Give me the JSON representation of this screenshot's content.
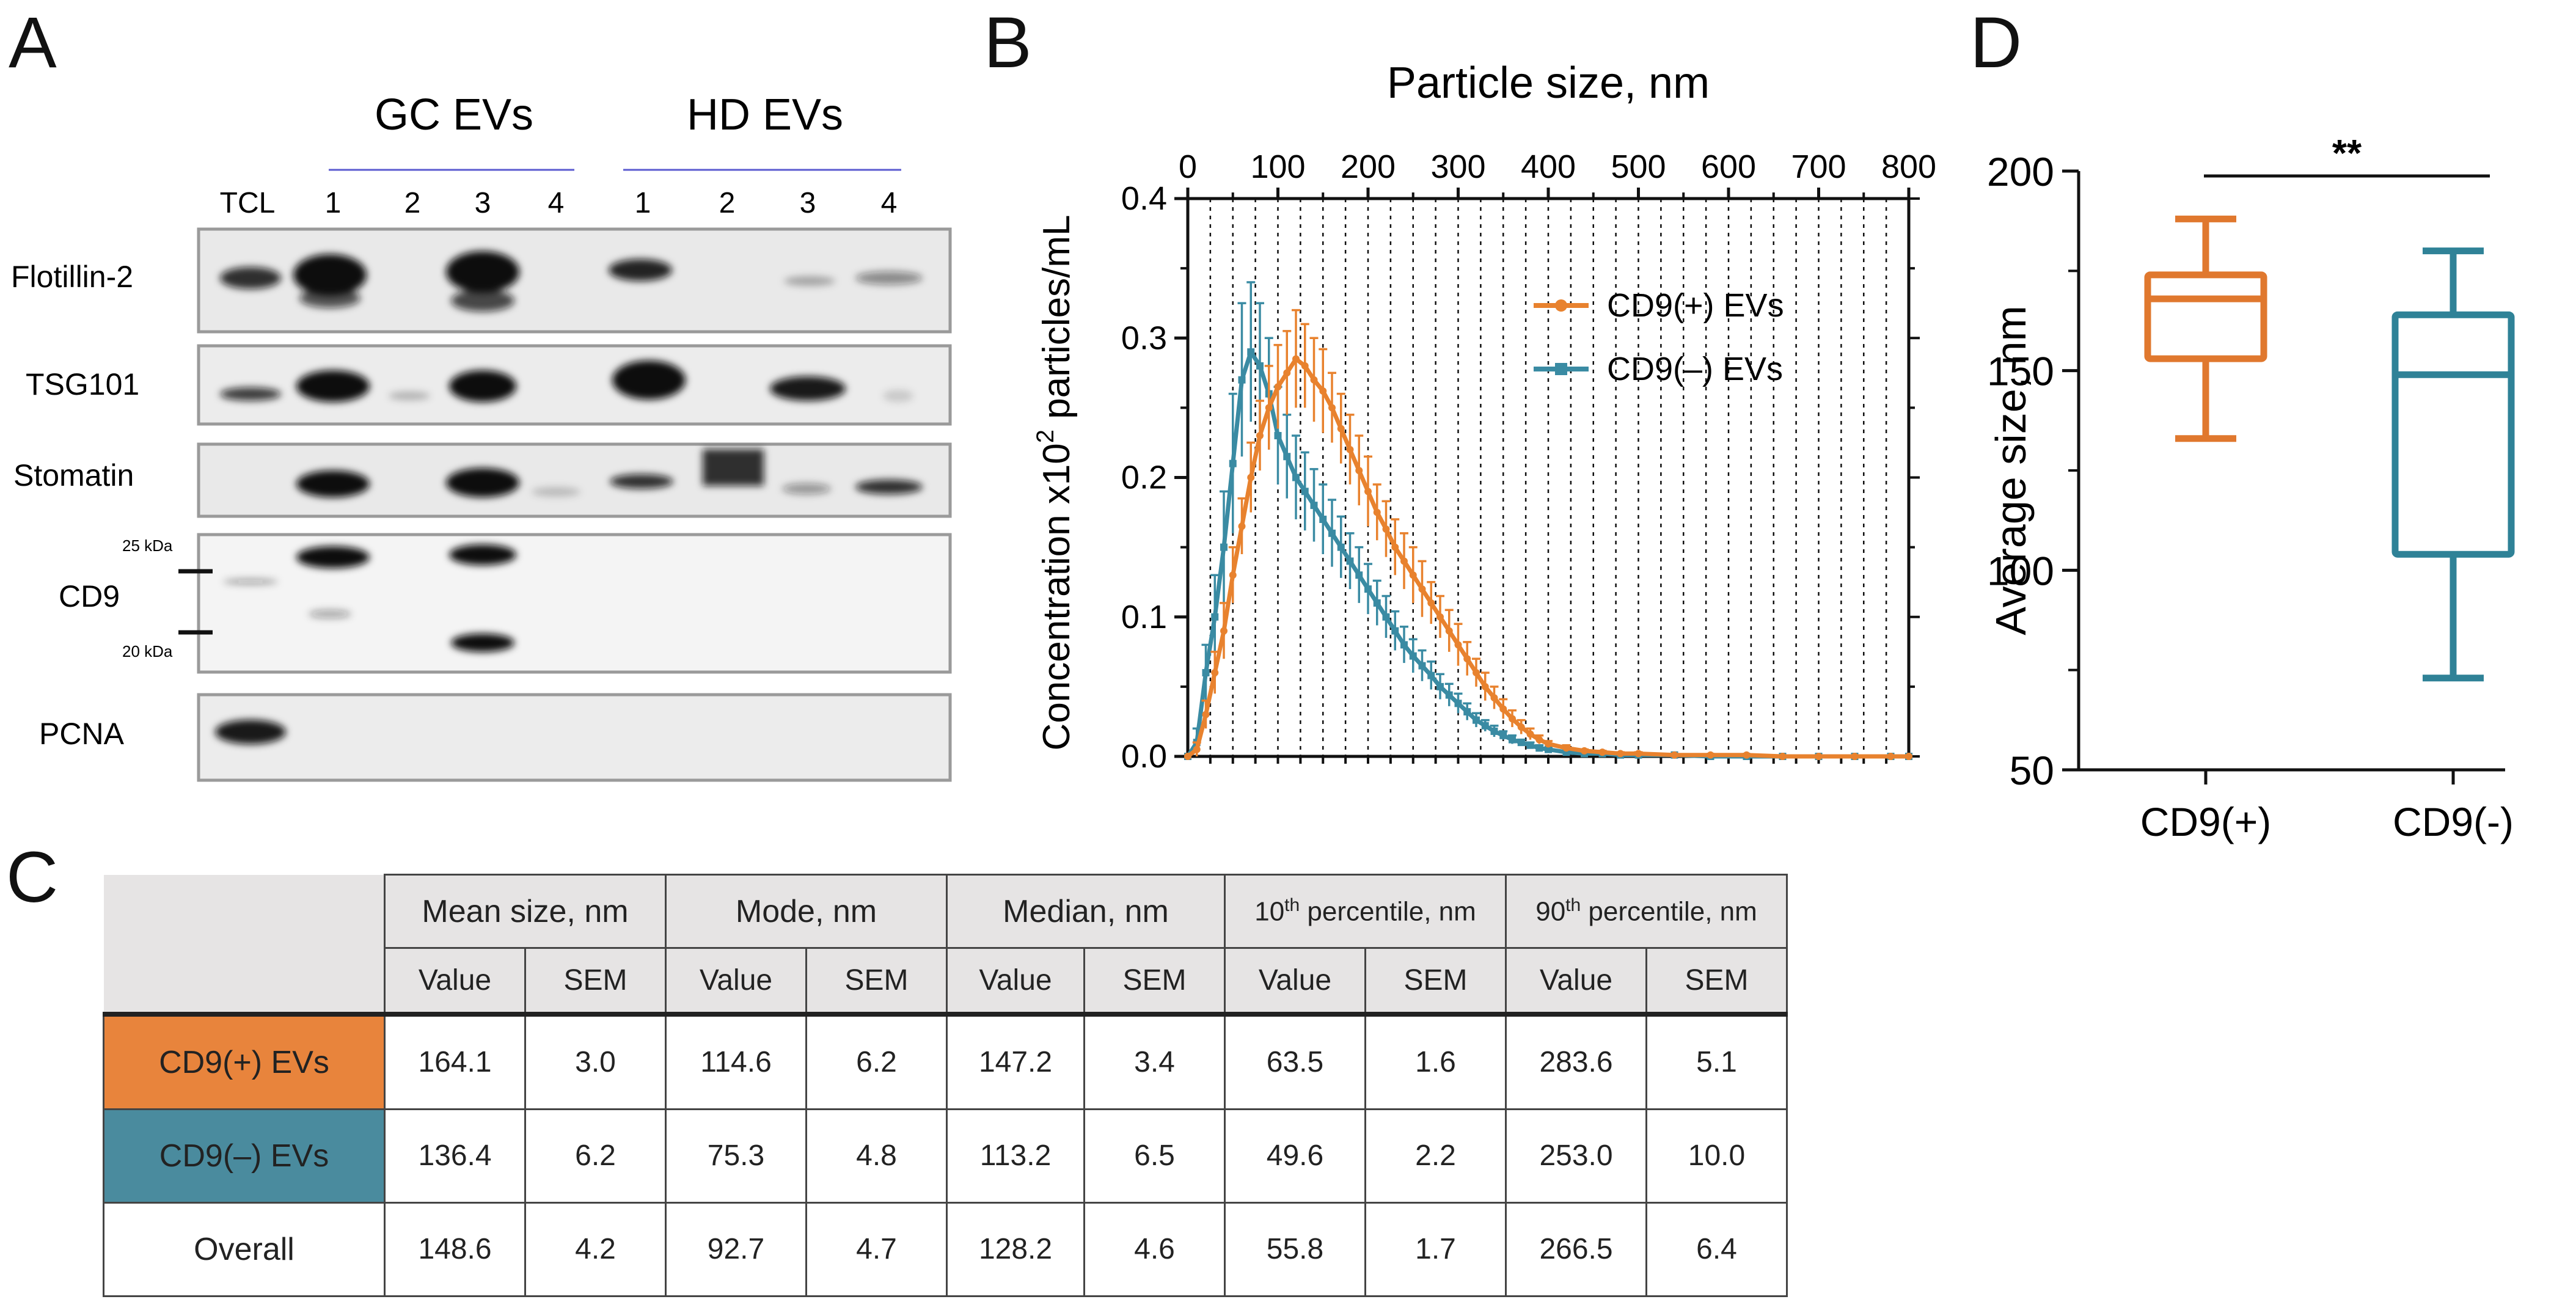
{
  "panels": {
    "a": "A",
    "b": "B",
    "c": "C",
    "d": "D"
  },
  "western_blot": {
    "groups": [
      "GC EVs",
      "HD EVs"
    ],
    "lanes": [
      "TCL",
      "1",
      "2",
      "3",
      "4",
      "1",
      "2",
      "3",
      "4"
    ],
    "proteins": [
      "Flotillin-2",
      "TSG101",
      "Stomatin",
      "CD9",
      "PCNA"
    ],
    "markers": [
      "25 kDa",
      "20 kDa"
    ]
  },
  "chart_data": [
    {
      "type": "line",
      "title": "Particle size, nm",
      "xlabel": "Particle size, nm",
      "ylabel": "Concentration x10² particles/mL",
      "ylabel_main": "Concentration x10",
      "ylabel_sup": "2",
      "ylabel_tail": " particles/mL",
      "xlim": [
        0,
        800
      ],
      "ylim": [
        0,
        0.4
      ],
      "xticks": [
        "0",
        "100",
        "200",
        "300",
        "400",
        "500",
        "600",
        "700",
        "800"
      ],
      "yticks": [
        "0.0",
        "0.1",
        "0.2",
        "0.3",
        "0.4"
      ],
      "legend_position": "top-right",
      "colors": {
        "cd9_pos": "#e8822e",
        "cd9_neg": "#3a8ba3"
      },
      "series": [
        {
          "name": "CD9(+) EVs",
          "x": [
            0,
            10,
            20,
            30,
            40,
            50,
            60,
            70,
            80,
            90,
            100,
            110,
            120,
            130,
            140,
            150,
            160,
            170,
            180,
            190,
            200,
            210,
            220,
            230,
            240,
            250,
            260,
            270,
            280,
            290,
            300,
            310,
            320,
            330,
            340,
            350,
            360,
            370,
            380,
            390,
            400,
            420,
            440,
            460,
            480,
            500,
            540,
            580,
            620,
            660,
            700,
            740,
            780,
            800
          ],
          "values": [
            0.0,
            0.005,
            0.03,
            0.06,
            0.09,
            0.13,
            0.165,
            0.2,
            0.23,
            0.25,
            0.265,
            0.275,
            0.285,
            0.28,
            0.27,
            0.262,
            0.25,
            0.235,
            0.22,
            0.205,
            0.19,
            0.175,
            0.163,
            0.15,
            0.14,
            0.13,
            0.12,
            0.11,
            0.1,
            0.09,
            0.08,
            0.07,
            0.06,
            0.05,
            0.042,
            0.034,
            0.027,
            0.021,
            0.016,
            0.012,
            0.009,
            0.006,
            0.004,
            0.003,
            0.002,
            0.002,
            0.001,
            0.001,
            0.001,
            0.0,
            0.0,
            0.0,
            0.0,
            0.0
          ],
          "errors": [
            0.0,
            0.005,
            0.01,
            0.015,
            0.02,
            0.02,
            0.02,
            0.025,
            0.025,
            0.03,
            0.03,
            0.03,
            0.035,
            0.03,
            0.03,
            0.03,
            0.025,
            0.025,
            0.025,
            0.025,
            0.025,
            0.02,
            0.02,
            0.02,
            0.02,
            0.02,
            0.02,
            0.015,
            0.015,
            0.015,
            0.015,
            0.012,
            0.01,
            0.01,
            0.008,
            0.007,
            0.006,
            0.005,
            0.004,
            0.003,
            0.002,
            0.002,
            0.001,
            0.001,
            0.001,
            0.001,
            0.0,
            0.0,
            0.0,
            0.0,
            0.0,
            0.0,
            0.0,
            0.0
          ]
        },
        {
          "name": "CD9(–) EVs",
          "x": [
            0,
            10,
            20,
            30,
            40,
            50,
            60,
            70,
            80,
            90,
            100,
            110,
            120,
            130,
            140,
            150,
            160,
            170,
            180,
            190,
            200,
            210,
            220,
            230,
            240,
            250,
            260,
            270,
            280,
            290,
            300,
            310,
            320,
            330,
            340,
            350,
            360,
            370,
            380,
            390,
            400,
            420,
            440,
            460,
            480,
            500,
            540,
            580,
            620,
            660,
            700,
            740,
            780,
            800
          ],
          "values": [
            0.0,
            0.01,
            0.06,
            0.1,
            0.15,
            0.21,
            0.27,
            0.29,
            0.28,
            0.26,
            0.23,
            0.215,
            0.2,
            0.19,
            0.18,
            0.17,
            0.16,
            0.15,
            0.14,
            0.13,
            0.12,
            0.11,
            0.1,
            0.09,
            0.08,
            0.072,
            0.065,
            0.058,
            0.05,
            0.044,
            0.038,
            0.032,
            0.026,
            0.022,
            0.018,
            0.015,
            0.012,
            0.01,
            0.008,
            0.006,
            0.005,
            0.003,
            0.002,
            0.002,
            0.001,
            0.001,
            0.001,
            0.0,
            0.0,
            0.0,
            0.0,
            0.0,
            0.0,
            0.0
          ],
          "errors": [
            0.0,
            0.01,
            0.02,
            0.03,
            0.04,
            0.05,
            0.055,
            0.05,
            0.045,
            0.04,
            0.035,
            0.03,
            0.03,
            0.028,
            0.026,
            0.025,
            0.024,
            0.022,
            0.02,
            0.02,
            0.018,
            0.016,
            0.015,
            0.014,
            0.013,
            0.012,
            0.011,
            0.01,
            0.009,
            0.008,
            0.007,
            0.006,
            0.005,
            0.004,
            0.004,
            0.003,
            0.003,
            0.002,
            0.002,
            0.002,
            0.001,
            0.001,
            0.001,
            0.001,
            0.0,
            0.0,
            0.0,
            0.0,
            0.0,
            0.0,
            0.0,
            0.0,
            0.0,
            0.0
          ]
        }
      ]
    },
    {
      "type": "box",
      "title": "",
      "xlabel": "",
      "ylabel": "Average size, nm",
      "ylim": [
        50,
        200
      ],
      "yticks": [
        "50",
        "100",
        "150",
        "200"
      ],
      "categories": [
        "CD9(+)",
        "CD9(-)"
      ],
      "significance": "**",
      "boxes": [
        {
          "name": "CD9(+)",
          "color": "#e0782e",
          "min": 133,
          "q1": 153,
          "median": 168,
          "q3": 174,
          "max": 188
        },
        {
          "name": "CD9(-)",
          "color": "#2f8297",
          "min": 73,
          "q1": 104,
          "median": 149,
          "q3": 164,
          "max": 180
        }
      ]
    }
  ],
  "table": {
    "headers": [
      "Mean size, nm",
      "Mode, nm",
      "Median, nm",
      "10",
      "90"
    ],
    "percentile_suffix": "th",
    "percentile_tail": " percentile, nm",
    "subheaders": [
      "Value",
      "SEM"
    ],
    "rows": [
      {
        "label": "CD9(+) EVs",
        "values": [
          "164.1",
          "3.0",
          "114.6",
          "6.2",
          "147.2",
          "3.4",
          "63.5",
          "1.6",
          "283.6",
          "5.1"
        ]
      },
      {
        "label": "CD9(–) EVs",
        "values": [
          "136.4",
          "6.2",
          "75.3",
          "4.8",
          "113.2",
          "6.5",
          "49.6",
          "2.2",
          "253.0",
          "10.0"
        ]
      },
      {
        "label": "Overall",
        "values": [
          "148.6",
          "4.2",
          "92.7",
          "4.7",
          "128.2",
          "4.6",
          "55.8",
          "1.7",
          "266.5",
          "6.4"
        ]
      }
    ]
  }
}
